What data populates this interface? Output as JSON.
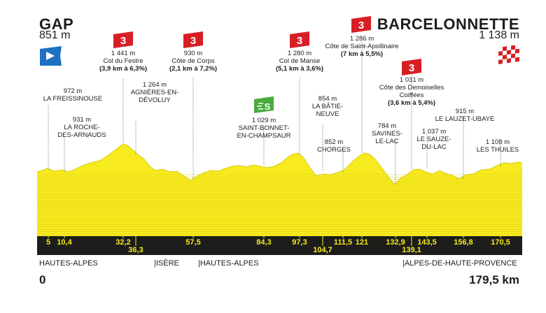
{
  "stage": {
    "start": {
      "name": "GAP",
      "altitude": "851 m"
    },
    "finish": {
      "name": "BARCELONNETTE",
      "altitude": "1 138 m"
    },
    "total_distance": "179,5 km",
    "start_km_label": "0"
  },
  "colors": {
    "profile_fill": "#f7ea1e",
    "climb_badge": "#d81e25",
    "sprint_badge": "#4aab3d",
    "start_flag": "#1f6fc3",
    "km_bar": "#1d1d1b"
  },
  "departments": [
    {
      "label": "HAUTES-ALPES"
    },
    {
      "label": "|ISÈRE"
    },
    {
      "label": "|HAUTES-ALPES"
    },
    {
      "label": "|ALPES-DE-HAUTE-PROVENCE"
    }
  ],
  "km_markers": [
    "5",
    "10,4",
    "32,2",
    "36,3",
    "57,5",
    "84,3",
    "97,3",
    "104,7",
    "111,5",
    "121",
    "132,9",
    "139,1",
    "143,5",
    "156,8",
    "170,5"
  ],
  "climbs": [
    {
      "category": "3",
      "lines": [
        "1 441 m",
        "Col du Festre",
        "(3,9 km à 6,3%)"
      ]
    },
    {
      "category": "3",
      "lines": [
        "930 m",
        "Côte de Corps",
        "(2,1 km à 7,2%)"
      ]
    },
    {
      "category": "3",
      "lines": [
        "1 280 m",
        "Col de Manse",
        "(5,1 km à 3,6%)"
      ]
    },
    {
      "category": "3",
      "lines": [
        "1 286 m",
        "Côte de Saint-Apollinaire",
        "(7 km à 5,5%)"
      ]
    },
    {
      "category": "3",
      "lines": [
        "1 031 m",
        "Côte des Demoiselles",
        "Coiffées",
        "(3,6 km à 5,4%)"
      ]
    }
  ],
  "sprint": {
    "icon": "sprint-icon",
    "lines": [
      "1 029 m",
      "SAINT-BONNET-",
      "EN-CHAMPSAUR"
    ]
  },
  "places": [
    {
      "lines": [
        "972 m",
        "LA FREISSINOUSE"
      ]
    },
    {
      "lines": [
        "931 m",
        "LA ROCHE-",
        "DES-ARNAUDS"
      ]
    },
    {
      "lines": [
        "1 264 m",
        "AGNIÈRES-EN-",
        "DÉVOLUY"
      ]
    },
    {
      "lines": [
        "854 m",
        "LA BÂTIE-",
        "NEUVE"
      ]
    },
    {
      "lines": [
        "852 m",
        "CHORGES"
      ]
    },
    {
      "lines": [
        "784 m",
        "SAVINES-",
        "LE-LAC"
      ]
    },
    {
      "lines": [
        "1 037 m",
        "LE SAUZE-",
        "DU-LAC"
      ]
    },
    {
      "lines": [
        "915 m",
        "LE LAUZET-UBAYE"
      ]
    },
    {
      "lines": [
        "1 108 m",
        "LES THUILES"
      ]
    }
  ]
}
